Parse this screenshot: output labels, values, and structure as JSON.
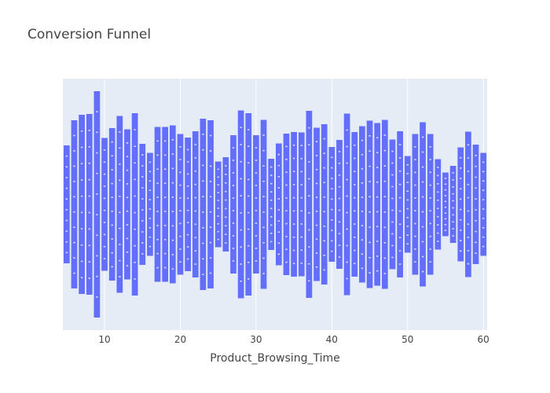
{
  "chart_data": {
    "type": "funnel",
    "title": "Conversion Funnel",
    "xlabel": "Product_Browsing_Time",
    "ylabel": "",
    "xlim": [
      4.5,
      60.5
    ],
    "xticks": [
      10,
      20,
      30,
      40,
      50,
      60
    ],
    "grid": true,
    "colors": {
      "bar": "#636efa",
      "plot_bg": "#e5ecf6",
      "axis_text": "#444444"
    },
    "x": [
      5,
      6,
      7,
      8,
      9,
      10,
      11,
      12,
      13,
      14,
      15,
      16,
      17,
      18,
      19,
      20,
      21,
      22,
      23,
      24,
      25,
      26,
      27,
      28,
      29,
      30,
      31,
      32,
      33,
      34,
      35,
      36,
      37,
      38,
      39,
      40,
      41,
      42,
      43,
      44,
      45,
      46,
      47,
      48,
      49,
      50,
      51,
      52,
      53,
      54,
      55,
      56,
      57,
      58,
      59,
      60
    ],
    "widths": [
      150,
      214,
      228,
      230,
      288,
      169,
      194,
      225,
      191,
      232,
      154,
      131,
      197,
      197,
      201,
      179,
      170,
      186,
      218,
      214,
      109,
      120,
      176,
      239,
      232,
      176,
      215,
      116,
      155,
      180,
      184,
      183,
      238,
      195,
      204,
      146,
      164,
      231,
      184,
      199,
      213,
      207,
      215,
      165,
      186,
      123,
      179,
      209,
      179,
      115,
      81,
      98,
      145,
      185,
      152,
      131
    ]
  }
}
